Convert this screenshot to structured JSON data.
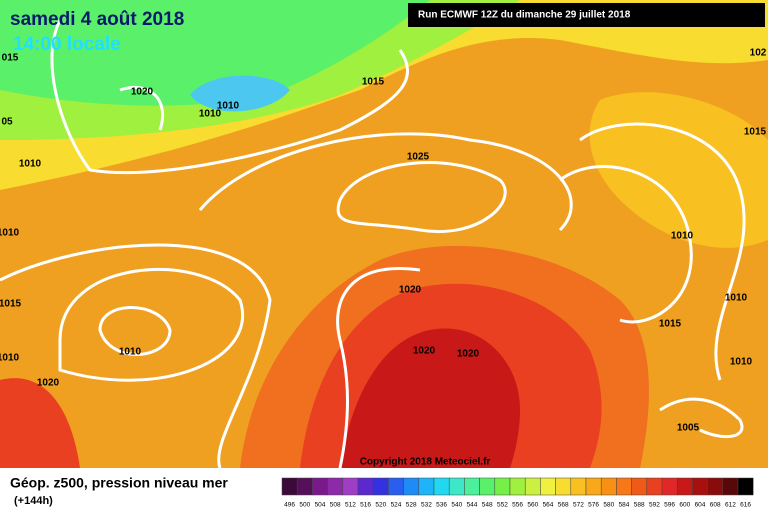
{
  "header": {
    "date": "samedi 4 août 2018",
    "time": "14:00 locale",
    "run": "Run ECMWF 12Z du dimanche 29 juillet 2018"
  },
  "map": {
    "copyright": "Copyright 2018 Meteociel.fr",
    "isobars": [
      "015",
      "1020",
      "1010",
      "1010",
      "1015",
      "05",
      "1010",
      "1025",
      "1010",
      "1010",
      "1015",
      "1010",
      "1020",
      "1020",
      "1020",
      "1020",
      "1015",
      "1010",
      "1010",
      "1005",
      "102",
      "1015",
      "1010"
    ]
  },
  "footer": {
    "title": "Géop. z500, pression niveau mer",
    "lead": "(+144h)"
  },
  "legend": {
    "ticks": [
      496,
      500,
      504,
      508,
      512,
      516,
      520,
      524,
      528,
      532,
      536,
      540,
      544,
      548,
      552,
      556,
      560,
      564,
      568,
      572,
      576,
      580,
      584,
      588,
      592,
      596,
      600,
      604,
      608,
      612,
      616
    ],
    "colors": [
      "#3b0a3a",
      "#56105a",
      "#7a1a8a",
      "#8c2aa8",
      "#9e3ec4",
      "#5a2ad0",
      "#3232e0",
      "#2a5ef0",
      "#1e8cf4",
      "#1eb4f8",
      "#22d8f0",
      "#3ce8c8",
      "#4cf09a",
      "#5af06a",
      "#74f048",
      "#a0f040",
      "#ccf040",
      "#f0f040",
      "#f8dc30",
      "#f8c020",
      "#f8a818",
      "#f89014",
      "#f87818",
      "#f05a18",
      "#e84020",
      "#e02828",
      "#c81818",
      "#a81010",
      "#880c0c",
      "#580808",
      "#000000"
    ]
  }
}
